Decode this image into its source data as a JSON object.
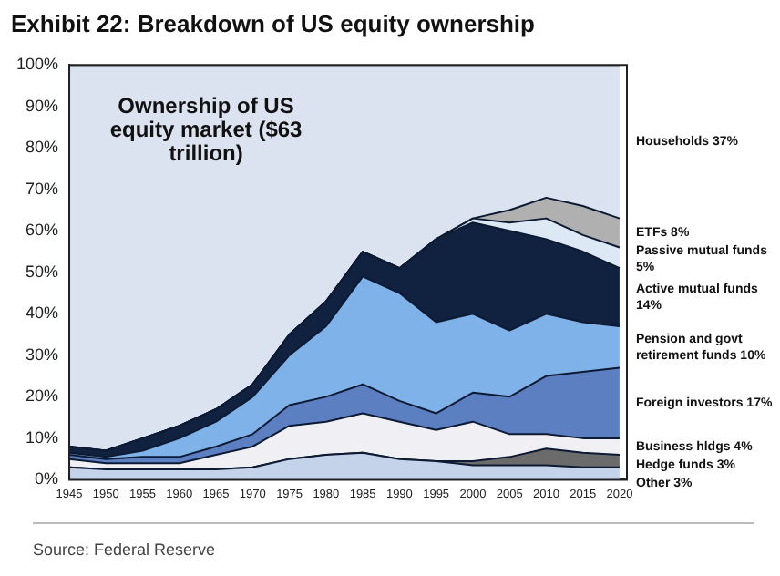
{
  "chart_data": {
    "type": "area",
    "stacked": true,
    "title": "Exhibit 22: Breakdown of US equity ownership",
    "annotations": [
      "Ownership of US equity market ($63 trillion)",
      "Source: Federal Reserve"
    ],
    "x": [
      1945,
      1950,
      1955,
      1960,
      1965,
      1970,
      1975,
      1980,
      1985,
      1990,
      1995,
      2000,
      2005,
      2010,
      2015,
      2020
    ],
    "xlim": [
      1945,
      2021
    ],
    "xticks": [
      1945,
      1950,
      1955,
      1960,
      1965,
      1970,
      1975,
      1980,
      1985,
      1990,
      1995,
      2000,
      2005,
      2010,
      2015,
      2020
    ],
    "ylim": [
      0,
      100
    ],
    "yticks": [
      {
        "value": 0,
        "label": "0%"
      },
      {
        "value": 10,
        "label": "10%"
      },
      {
        "value": 20,
        "label": "20%"
      },
      {
        "value": 30,
        "label": "30%"
      },
      {
        "value": 40,
        "label": "40%"
      },
      {
        "value": 50,
        "label": "50%"
      },
      {
        "value": 60,
        "label": "60%"
      },
      {
        "value": 70,
        "label": "70%"
      },
      {
        "value": 80,
        "label": "80%"
      },
      {
        "value": 90,
        "label": "90%"
      },
      {
        "value": 100,
        "label": "100%"
      }
    ],
    "grid": false,
    "legend": false,
    "series": [
      {
        "name": "Other 3%",
        "color": "#c5d3ea",
        "values": [
          3,
          2.5,
          2.5,
          2.5,
          2.5,
          3,
          5,
          6,
          6.5,
          5,
          4.5,
          3.5,
          3.5,
          3.5,
          3,
          3
        ]
      },
      {
        "name": "Hedge funds 3%",
        "color": "#6b6b6b",
        "values": [
          0,
          0,
          0,
          0,
          0,
          0,
          0,
          0,
          0,
          0,
          0,
          1,
          2,
          4,
          3.5,
          3
        ]
      },
      {
        "name": "Business hldgs 4%",
        "color": "#f0f0f4",
        "values": [
          2,
          1.5,
          1.5,
          1.5,
          3.5,
          5,
          8,
          8,
          9.5,
          9,
          7.5,
          9.5,
          5.5,
          3.5,
          3.5,
          4
        ]
      },
      {
        "name": "Foreign investors 17%",
        "color": "#5b7fc0",
        "values": [
          1,
          1,
          1.5,
          1.5,
          2,
          3,
          5,
          6,
          7,
          5,
          4,
          7,
          9,
          14,
          16,
          17
        ]
      },
      {
        "name": "Pension and govt retirement funds 10%",
        "color": "#7fb2e8",
        "values": [
          0.5,
          0.5,
          1.5,
          4.5,
          6,
          9,
          12,
          17,
          26,
          26,
          22,
          19,
          16,
          15,
          12,
          10
        ]
      },
      {
        "name": "Active mutual funds 14%",
        "color": "#10223f",
        "values": [
          1.5,
          1.5,
          3,
          3,
          3,
          3,
          5,
          6,
          6,
          6,
          20,
          22,
          24,
          18,
          17,
          14
        ]
      },
      {
        "name": "Passive mutual funds 5%",
        "color": "#dde8f5",
        "values": [
          0,
          0,
          0,
          0,
          0,
          0,
          0,
          0,
          0,
          0,
          0,
          1,
          2,
          5,
          4,
          5
        ]
      },
      {
        "name": "ETFs 8%",
        "color": "#b0b0b0",
        "values": [
          0,
          0,
          0,
          0,
          0,
          0,
          0,
          0,
          0,
          0,
          0,
          0,
          3,
          5,
          7,
          7
        ]
      },
      {
        "name": "Households 37%",
        "color": "#dce3f0",
        "values": [
          92,
          93,
          90,
          87,
          83,
          77,
          65,
          57,
          45,
          49,
          42,
          37,
          35,
          32,
          34,
          37
        ]
      }
    ]
  }
}
